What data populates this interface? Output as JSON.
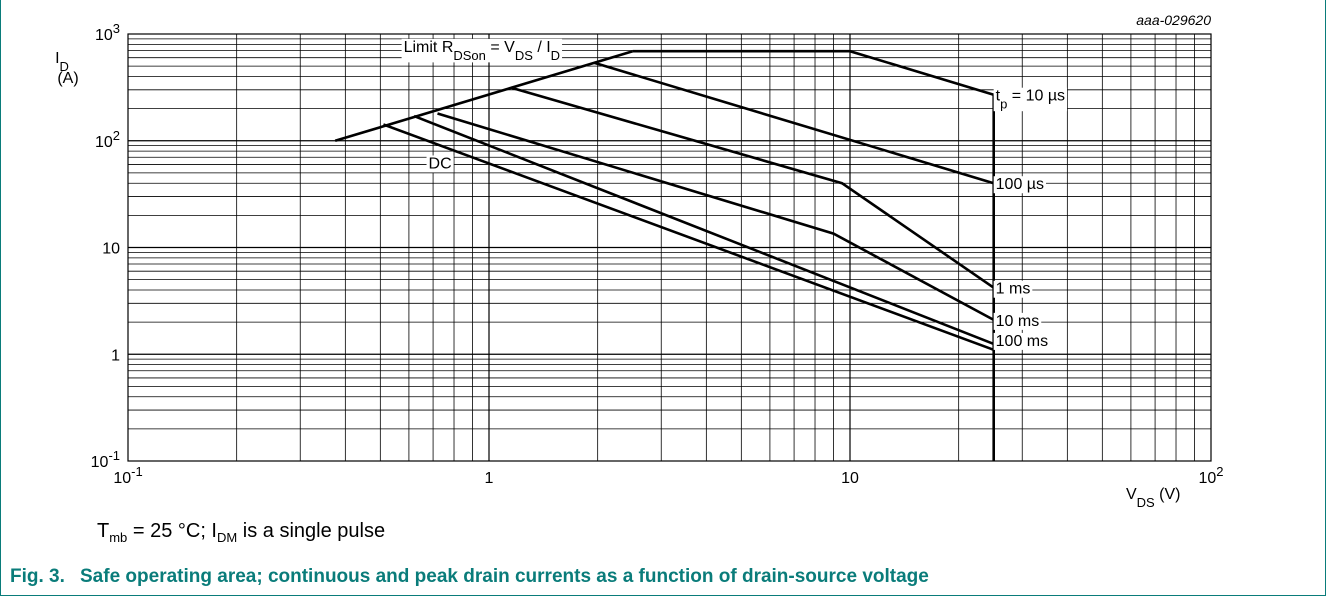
{
  "figure_id": "aaa-029620",
  "condition_note": {
    "t": "T",
    "t_sub": "mb",
    "middle": " = 25 °C; I",
    "i_sub": "DM",
    "end": " is a single pulse"
  },
  "caption": {
    "number": "Fig. 3.",
    "text": "Safe operating area; continuous and peak drain currents as a function of drain-source voltage"
  },
  "chart_data": {
    "type": "line",
    "x_scale": "log",
    "y_scale": "log",
    "xlim": [
      0.1,
      100
    ],
    "ylim": [
      0.1,
      1000
    ],
    "grid": true,
    "ylabel": {
      "main": "I",
      "sub": "D",
      "unit": "(A)"
    },
    "xlabel": {
      "main": "V",
      "sub": "DS",
      "unit": " (V)"
    },
    "x_ticks": [
      {
        "v": 0.1,
        "base": "10",
        "exp": "-1"
      },
      {
        "v": 1,
        "base": "1",
        "exp": ""
      },
      {
        "v": 10,
        "base": "10",
        "exp": ""
      },
      {
        "v": 100,
        "base": "10",
        "exp": "2"
      }
    ],
    "y_ticks": [
      {
        "v": 1000,
        "base": "10",
        "exp": "3"
      },
      {
        "v": 100,
        "base": "10",
        "exp": "2"
      },
      {
        "v": 10,
        "base": "10",
        "exp": ""
      },
      {
        "v": 1,
        "base": "1",
        "exp": ""
      },
      {
        "v": 0.1,
        "base": "10",
        "exp": "-1"
      }
    ],
    "limit_annotation": {
      "prefix": "Limit R",
      "sub1": "DSon",
      "mid": " = V",
      "sub2": "DS",
      "mid2": " / I",
      "sub3": "D"
    },
    "series": [
      {
        "key": "limit",
        "points": [
          [
            0.375,
            100
          ],
          [
            2.5,
            690
          ]
        ]
      },
      {
        "key": "10us",
        "name": "t",
        "name_sub": "p",
        "name_rest": " = 10 µs",
        "points": [
          [
            2.5,
            690
          ],
          [
            10,
            690
          ],
          [
            25,
            270
          ]
        ]
      },
      {
        "key": "100us",
        "name": "100 µs",
        "points": [
          [
            1.95,
            540
          ],
          [
            25,
            40
          ]
        ]
      },
      {
        "key": "1ms",
        "name": "1 ms",
        "points": [
          [
            1.15,
            315
          ],
          [
            9.5,
            40
          ],
          [
            25,
            4.2
          ]
        ]
      },
      {
        "key": "10ms",
        "name": "10 ms",
        "points": [
          [
            0.72,
            180
          ],
          [
            9,
            13.5
          ],
          [
            25,
            2.1
          ]
        ]
      },
      {
        "key": "100ms",
        "name": "100 ms",
        "points": [
          [
            0.62,
            170
          ],
          [
            25,
            1.25
          ]
        ]
      },
      {
        "key": "dc",
        "name": "DC",
        "points": [
          [
            0.51,
            142
          ],
          [
            25,
            1.1
          ]
        ]
      },
      {
        "key": "vmax",
        "points": [
          [
            25,
            270
          ],
          [
            25,
            0.1
          ]
        ]
      }
    ]
  }
}
